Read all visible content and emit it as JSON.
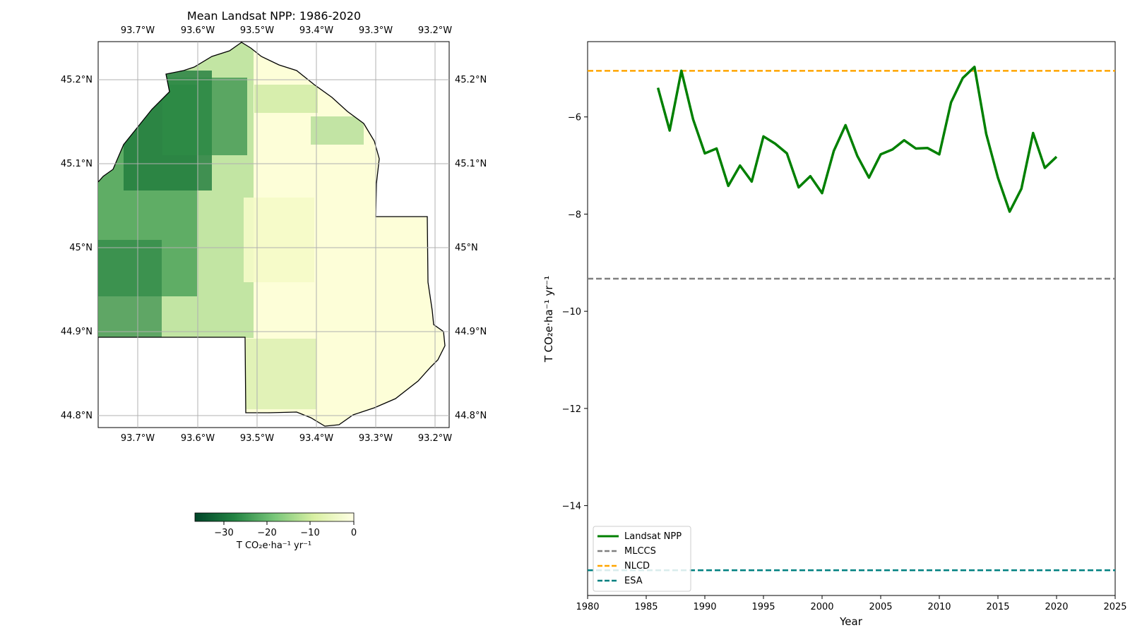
{
  "chart_data": [
    {
      "type": "heatmap",
      "title": "Mean Landsat NPP: 1986-2020",
      "x_ticks": [
        "93.7°W",
        "93.6°W",
        "93.5°W",
        "93.4°W",
        "93.3°W",
        "93.2°W"
      ],
      "y_ticks": [
        "45.2°N",
        "45.1°N",
        "45°N",
        "44.9°N",
        "44.8°N"
      ],
      "grid": true,
      "colormap": {
        "name": "YlGn_r",
        "colors": [
          "#004529",
          "#238443",
          "#78c679",
          "#d9f0a3",
          "#ffffe5"
        ],
        "range": [
          -36,
          0
        ],
        "ticks": [
          "−30",
          "−20",
          "−10",
          "0"
        ],
        "label": "T CO₂e·ha⁻¹ yr⁻¹"
      }
    },
    {
      "type": "line",
      "xlabel": "Year",
      "ylabel": "T CO₂e·ha⁻¹ yr⁻¹",
      "xlim": [
        1980,
        2025
      ],
      "ylim": [
        -15.85,
        -4.45
      ],
      "x_ticks": [
        "1980",
        "1985",
        "1990",
        "1995",
        "2000",
        "2005",
        "2010",
        "2015",
        "2020",
        "2025"
      ],
      "y_ticks": [
        "−6",
        "−8",
        "−10",
        "−12",
        "−14"
      ],
      "grid": false,
      "legend_position": "lower-left",
      "series": [
        {
          "name": "Landsat NPP",
          "color": "#008000",
          "style": "solid",
          "x": [
            1986,
            1987,
            1988,
            1989,
            1990,
            1991,
            1992,
            1993,
            1994,
            1995,
            1996,
            1997,
            1998,
            1999,
            2000,
            2001,
            2002,
            2003,
            2004,
            2005,
            2006,
            2007,
            2008,
            2009,
            2010,
            2011,
            2012,
            2013,
            2014,
            2015,
            2016,
            2017,
            2018,
            2019,
            2020
          ],
          "values": [
            -5.4,
            -6.28,
            -5.05,
            -6.05,
            -6.75,
            -6.65,
            -7.42,
            -7.0,
            -7.33,
            -6.4,
            -6.55,
            -6.75,
            -7.45,
            -7.22,
            -7.57,
            -6.7,
            -6.17,
            -6.8,
            -7.25,
            -6.77,
            -6.67,
            -6.48,
            -6.65,
            -6.64,
            -6.77,
            -5.7,
            -5.2,
            -4.97,
            -6.35,
            -7.25,
            -7.95,
            -7.48,
            -6.33,
            -7.05,
            -6.82
          ]
        },
        {
          "name": "MLCCS",
          "color": "#808080",
          "style": "dashed",
          "value": -9.33
        },
        {
          "name": "NLCD",
          "color": "#ffa500",
          "style": "dashed",
          "value": -5.05
        },
        {
          "name": "ESA",
          "color": "#008080",
          "style": "dashed",
          "value": -15.33
        }
      ]
    }
  ]
}
